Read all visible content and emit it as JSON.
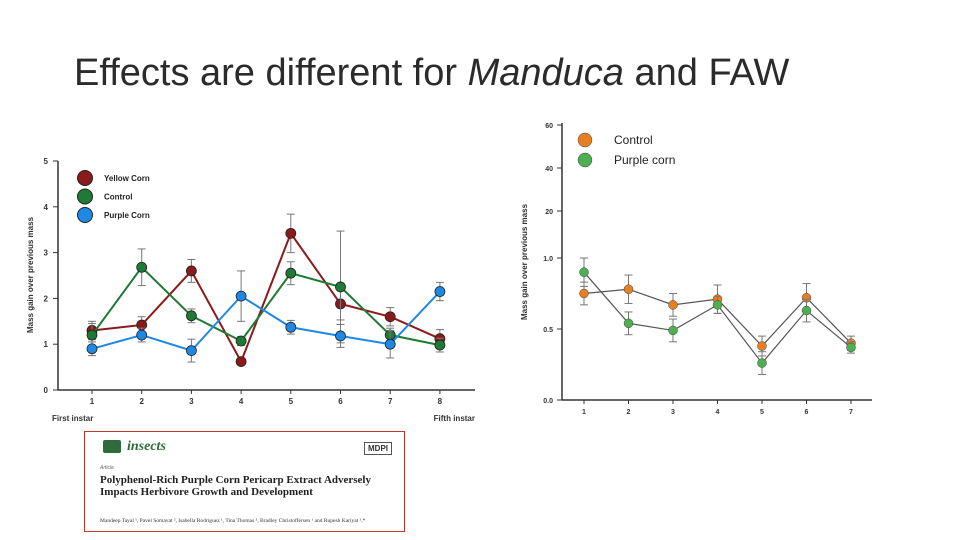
{
  "slide": {
    "title_part1": "Effects are different for ",
    "title_italic": "Manduca",
    "title_part2": " and FAW"
  },
  "chart_data": [
    {
      "type": "line",
      "ylabel": "Mass gain over previous mass",
      "x_start_label": "First instar",
      "x_end_label": "Fifth instar",
      "categories": [
        "1",
        "2",
        "3",
        "4",
        "5",
        "6",
        "7",
        "8"
      ],
      "y_ticks": [
        "0",
        "1",
        "2",
        "3",
        "4",
        "5"
      ],
      "ylim": [
        0,
        5
      ],
      "grid": false,
      "legend_position": "top-left",
      "series": [
        {
          "name": "Yellow Corn",
          "color": "#8b1a1a",
          "values": [
            1.3,
            1.42,
            2.6,
            0.62,
            3.42,
            1.88,
            1.6,
            1.12
          ],
          "err": [
            0.2,
            0.18,
            0.25,
            0.05,
            0.42,
            0.35,
            0.2,
            0.2
          ]
        },
        {
          "name": "Control",
          "color": "#1e7a35",
          "values": [
            1.2,
            2.68,
            1.62,
            1.07,
            2.55,
            2.25,
            1.2,
            0.98
          ],
          "err": [
            0.25,
            0.4,
            0.15,
            0.1,
            0.25,
            1.22,
            0.15,
            0.15
          ]
        },
        {
          "name": "Purple Corn",
          "color": "#1e88e5",
          "values": [
            0.9,
            1.2,
            0.86,
            2.05,
            1.37,
            1.18,
            1.0,
            2.15
          ],
          "err": [
            0.15,
            0.15,
            0.25,
            0.55,
            0.15,
            0.25,
            0.3,
            0.2
          ]
        }
      ]
    },
    {
      "type": "line",
      "ylabel": "Mass gain over previous mass",
      "categories": [
        "1",
        "2",
        "3",
        "4",
        "5",
        "6",
        "7"
      ],
      "y_ticks": [
        "0.0",
        "0.5",
        "1.0",
        "20",
        "40",
        "60"
      ],
      "ylim": [
        0,
        60
      ],
      "y_axis_break": "broken axis: 0.0–1.0 linear, 1.0–60 compressed",
      "grid": false,
      "legend_position": "top-left",
      "series": [
        {
          "name": "Control",
          "color": "#e67e22",
          "values": [
            0.75,
            0.78,
            0.67,
            0.71,
            0.38,
            0.72,
            0.4
          ],
          "err": [
            0.08,
            0.1,
            0.08,
            0.1,
            0.07,
            0.1,
            0.05
          ]
        },
        {
          "name": "Purple corn",
          "color": "#4caf50",
          "values": [
            0.9,
            0.54,
            0.49,
            0.67,
            0.26,
            0.63,
            0.37
          ],
          "err": [
            0.1,
            0.08,
            0.08,
            0.06,
            0.08,
            0.08,
            0.04
          ]
        }
      ]
    }
  ],
  "reference": {
    "journal": "insects",
    "publisher": "MDPI",
    "article_type": "Article",
    "title": "Polyphenol-Rich Purple Corn Pericarp Extract Adversely Impacts Herbivore Growth and Development",
    "authors": "Mandeep Tayal ¹, Pavel Somavat ², Isabella Rodriguez ¹, Tina Thomas ¹, Bradley Christoffersen ¹ and Rupesh Kariyat ¹,*"
  }
}
